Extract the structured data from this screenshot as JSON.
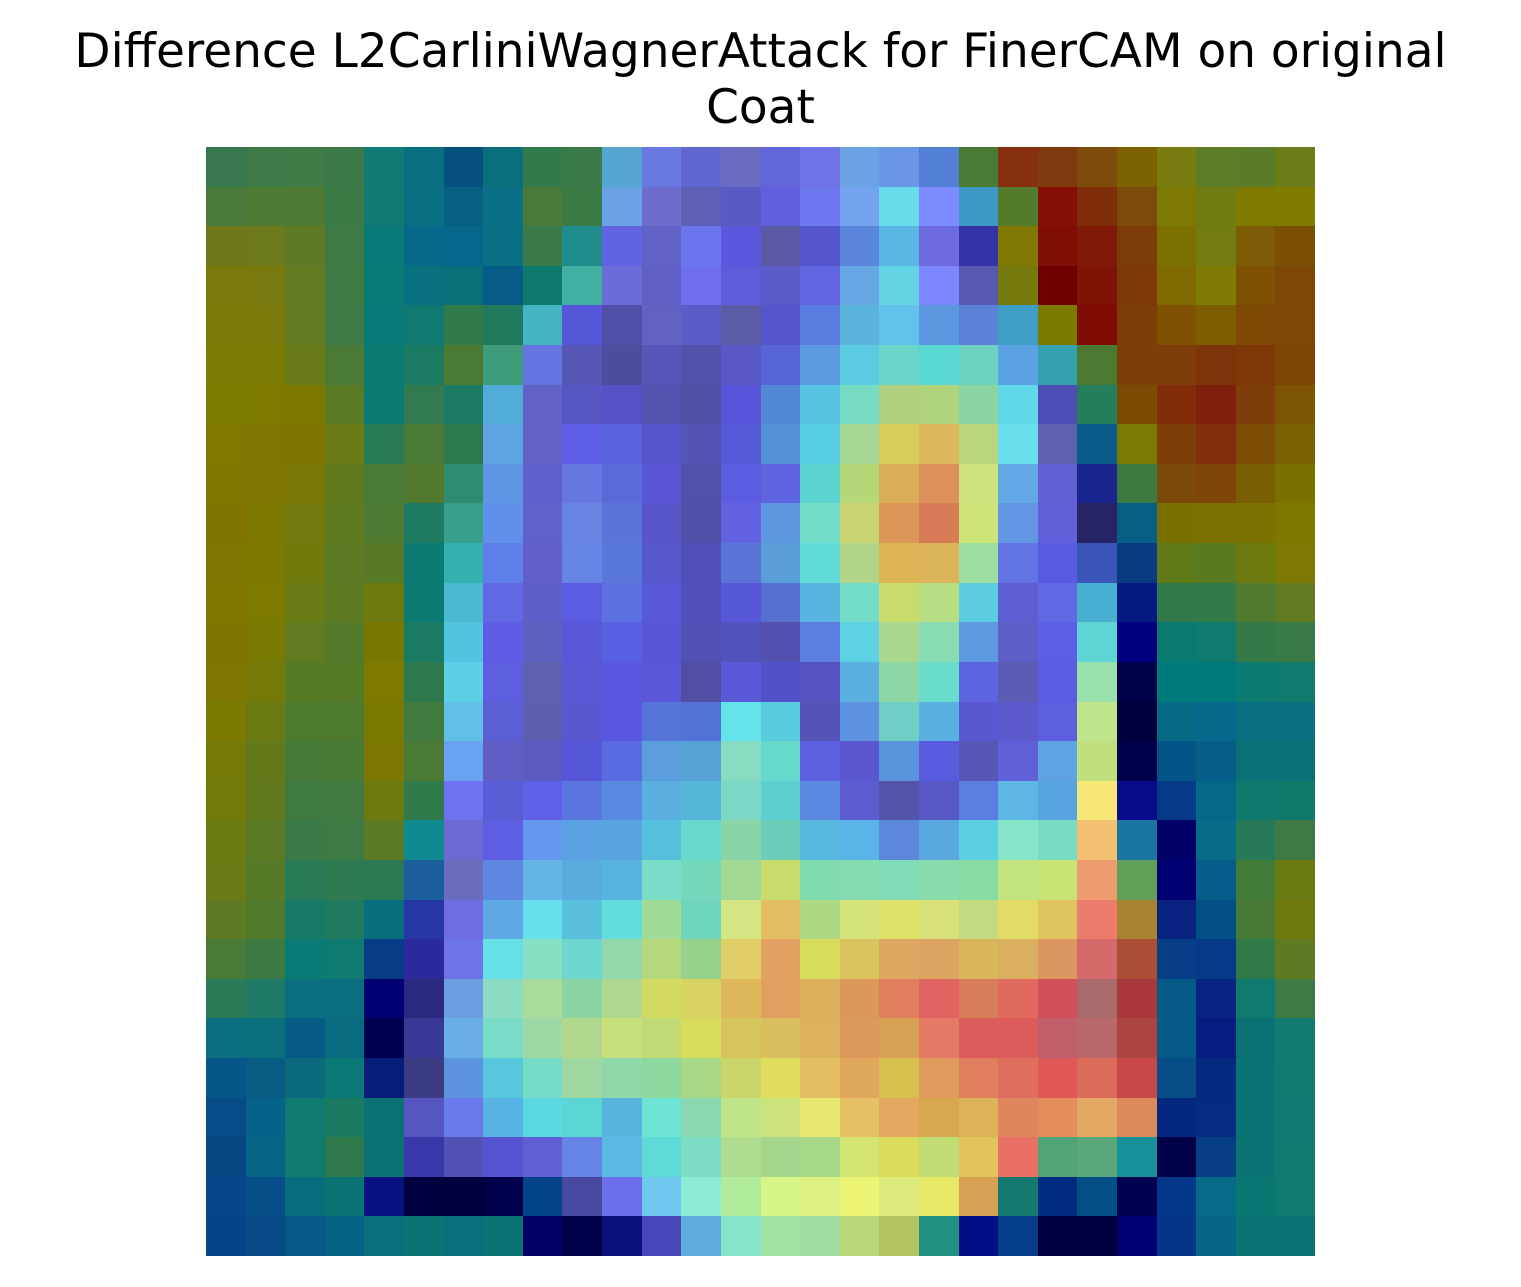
{
  "figure": {
    "title_line1": "Difference L2CarliniWagnerAttack for FinerCAM on original",
    "title_line2": "Coat"
  },
  "image": {
    "description_name": "difference-heatmap-overlay",
    "grid_size": 28,
    "rows": [
      [
        "#38784e",
        "#3e7a48",
        "#407a44",
        "#3a7a48",
        "#107a74",
        "#086e80",
        "#06507e",
        "#0a6e7c",
        "#307a4c",
        "#3a7a48",
        "#56a4d2",
        "#6a78e2",
        "#6266d0",
        "#6a6cc2",
        "#6266d8",
        "#6e74e8",
        "#6aa2e4",
        "#6a96e6",
        "#5280d4",
        "#4a7a34",
        "#863010",
        "#7e3a0c",
        "#7e4c0a",
        "#7e6200",
        "#767c10",
        "#5c7c28",
        "#5a7c28",
        "#6c7c18"
      ],
      [
        "#4a7a3a",
        "#4e7c34",
        "#4e7a34",
        "#3a7a44",
        "#127a74",
        "#0a6e82",
        "#066082",
        "#0a7088",
        "#4a7a3a",
        "#3a7a44",
        "#68a2e4",
        "#6e6cca",
        "#5e60b6",
        "#5a5ac4",
        "#6060dc",
        "#6e78ee",
        "#74a4f0",
        "#68dcea",
        "#7c8cff",
        "#3e98c4",
        "#527c2c",
        "#861008",
        "#802e0a",
        "#7c4a0a",
        "#7c7a04",
        "#6e7c12",
        "#807a00",
        "#807c00"
      ],
      [
        "#6e7818",
        "#6c7a1c",
        "#5e7a26",
        "#3e7a44",
        "#0a7a78",
        "#08688a",
        "#06668c",
        "#0a7086",
        "#3a7a48",
        "#1e8c8a",
        "#6064e0",
        "#6262c6",
        "#6c76ec",
        "#5c58de",
        "#5c5aa4",
        "#5656cc",
        "#5a86dc",
        "#5cb6e4",
        "#6e6ae0",
        "#3434a8",
        "#807a04",
        "#800e06",
        "#801a08",
        "#7c3c0a",
        "#7c7000",
        "#727c12",
        "#7c5a06",
        "#7c5004"
      ],
      [
        "#7a7a0c",
        "#787a10",
        "#647a20",
        "#3e7a44",
        "#0a7a76",
        "#08707e",
        "#087078",
        "#065c86",
        "#0e7a6c",
        "#42b0a0",
        "#6a6cd8",
        "#6060c4",
        "#6e6eee",
        "#5e5cd8",
        "#5c5cc8",
        "#6266e0",
        "#66a6e4",
        "#62d4e4",
        "#7c86fe",
        "#5858b0",
        "#747a0c",
        "#6e0000",
        "#7e1406",
        "#7e380a",
        "#7e6a00",
        "#7e7c04",
        "#7e5202",
        "#7c4804"
      ],
      [
        "#7a7a0a",
        "#7a7a0a",
        "#647a20",
        "#3e7a46",
        "#0a7a78",
        "#107a72",
        "#327a4a",
        "#227a5e",
        "#42b4c2",
        "#5656d8",
        "#5050a8",
        "#6262c2",
        "#5c5cc8",
        "#5c5ca6",
        "#5656cc",
        "#5a7cde",
        "#5ab4dc",
        "#62c2ea",
        "#5c98e0",
        "#5c82d8",
        "#3e9ec4",
        "#7a7a00",
        "#800a04",
        "#7e3e0a",
        "#7e5202",
        "#7e5c02",
        "#7e4806",
        "#7e4804"
      ],
      [
        "#7c7c06",
        "#7c7c04",
        "#687a1a",
        "#4a7a36",
        "#0a7a72",
        "#1a7a62",
        "#4a7a34",
        "#3e9c7a",
        "#6674e2",
        "#5656b4",
        "#4e4c9e",
        "#5656b8",
        "#5252aa",
        "#5a58c4",
        "#5664d8",
        "#5c9ae0",
        "#5ccae0",
        "#6ad6c8",
        "#5ad8d4",
        "#6ed2c0",
        "#5aa2e4",
        "#34a0b0",
        "#4c7a30",
        "#7e3e0a",
        "#7e3e0a",
        "#7e3408",
        "#7e3808",
        "#7e4404"
      ],
      [
        "#7c7c00",
        "#7c7a00",
        "#7c7800",
        "#5a7a26",
        "#0a7a72",
        "#327a50",
        "#1a7a64",
        "#52acd8",
        "#6262c6",
        "#5656c2",
        "#5652c6",
        "#5454b0",
        "#5250a4",
        "#5654d8",
        "#5288d4",
        "#58c4e2",
        "#78dcc4",
        "#b0d080",
        "#b0d47e",
        "#8ad6a2",
        "#60d8e8",
        "#4c4eb4",
        "#247e5c",
        "#7c4a02",
        "#822c0a",
        "#7e200c",
        "#7e3e0a",
        "#7c5404"
      ],
      [
        "#807800",
        "#7e7600",
        "#7e7400",
        "#6a7a14",
        "#2a7a56",
        "#4a7a36",
        "#2c7a4e",
        "#5ea4e2",
        "#6262c6",
        "#5e5ee6",
        "#5a62e0",
        "#5656cc",
        "#5454b2",
        "#545ad8",
        "#5690d6",
        "#58cee2",
        "#a6d896",
        "#d8cc5a",
        "#dcb85a",
        "#b8d67c",
        "#6adeec",
        "#6060b0",
        "#0a5a8a",
        "#7a7a04",
        "#7e3e0a",
        "#822e0c",
        "#7c4c04",
        "#7c6004"
      ],
      [
        "#807600",
        "#7e7600",
        "#7a7806",
        "#627a1e",
        "#4a7a38",
        "#527a2e",
        "#308c70",
        "#5e96e4",
        "#6060cc",
        "#6678e0",
        "#5c6ad8",
        "#5a56d6",
        "#5250a8",
        "#5c5ce0",
        "#5e64e0",
        "#5cd4d2",
        "#b6d67a",
        "#daae58",
        "#dc905a",
        "#cce27a",
        "#62a8e4",
        "#6060d0",
        "#1a2690",
        "#3c7a40",
        "#7c4a08",
        "#7e4408",
        "#7a5e04",
        "#7a7000"
      ],
      [
        "#807400",
        "#7c7800",
        "#727a0e",
        "#607a20",
        "#4e7a32",
        "#1e7a60",
        "#38a08a",
        "#6090ea",
        "#6062cc",
        "#6684e0",
        "#5a74d8",
        "#5656c6",
        "#5050a8",
        "#6262e2",
        "#5e96e0",
        "#72dcc8",
        "#c8d470",
        "#dc9658",
        "#d87c58",
        "#cce478",
        "#6296e4",
        "#6060d8",
        "#262464",
        "#066086",
        "#7a7000",
        "#7a7004",
        "#7c7200",
        "#7c7800"
      ],
      [
        "#7e7600",
        "#7c7800",
        "#707a0a",
        "#5e7a22",
        "#587a28",
        "#0a7a72",
        "#34b0b0",
        "#5e80e8",
        "#6060c8",
        "#6684e4",
        "#5a78dc",
        "#5658cc",
        "#5050b8",
        "#5a74d8",
        "#5a9ed8",
        "#62dcd8",
        "#b0d488",
        "#dcb456",
        "#dcb45a",
        "#9cdea0",
        "#6274e4",
        "#5a5ae0",
        "#3a54b8",
        "#0a3a80",
        "#607a18",
        "#5a7a20",
        "#6c7a10",
        "#7c7a04"
      ],
      [
        "#807600",
        "#7c7a00",
        "#6a7a14",
        "#5e7a22",
        "#6c7a10",
        "#0a7a72",
        "#4cb8d0",
        "#6068e4",
        "#5e5ec8",
        "#5c5ce2",
        "#5c70e0",
        "#5858d8",
        "#5050b8",
        "#5658d8",
        "#5670d0",
        "#5ab4e0",
        "#72dcc8",
        "#c8dc6c",
        "#b8de84",
        "#5ccce0",
        "#5e5ed0",
        "#6068e4",
        "#48aed2",
        "#061a82",
        "#327a4a",
        "#327a48",
        "#527a2e",
        "#627a20"
      ],
      [
        "#807400",
        "#787a02",
        "#627a20",
        "#547a2a",
        "#787800",
        "#1a7a62",
        "#52c4e0",
        "#5e5ce4",
        "#5e60c0",
        "#5858d8",
        "#5660e0",
        "#5656d6",
        "#5252b4",
        "#5252bc",
        "#5450b0",
        "#5c7ee0",
        "#5cd2e2",
        "#aad88e",
        "#88dcb0",
        "#5e98e0",
        "#5e5ec8",
        "#5e5ee4",
        "#5ed4d4",
        "#00007e",
        "#0a7a70",
        "#0e7a70",
        "#347a48",
        "#3a7a46"
      ],
      [
        "#7e7600",
        "#747a08",
        "#567a26",
        "#547a28",
        "#7c7a00",
        "#2e7a4e",
        "#5cd0e4",
        "#5e5ee0",
        "#5e60b0",
        "#5a5ad4",
        "#5a58e0",
        "#5a58d6",
        "#524ea4",
        "#5a5ad8",
        "#5252c8",
        "#5652c0",
        "#5ab0e0",
        "#8ed6a4",
        "#6adccc",
        "#5c64e0",
        "#5c5cb4",
        "#5c5ce0",
        "#9ae2ac",
        "#000048",
        "#007a7a",
        "#007a7a",
        "#0c7a70",
        "#107a6c"
      ],
      [
        "#7a7a00",
        "#6a7a12",
        "#4e7a30",
        "#4e7a30",
        "#7a7a00",
        "#427a40",
        "#62c0e6",
        "#5c5ed4",
        "#5e5eb0",
        "#5a58d0",
        "#5a58e0",
        "#5474d8",
        "#5472d6",
        "#64e4ea",
        "#58ccdc",
        "#5454b8",
        "#5c92e0",
        "#6ed0c4",
        "#5ab0e0",
        "#5a58d0",
        "#5c5acc",
        "#5c60e0",
        "#c0e48a",
        "#00003c",
        "#066a84",
        "#06688a",
        "#087080",
        "#087080"
      ],
      [
        "#747a08",
        "#647a1a",
        "#467a38",
        "#487a36",
        "#7a7800",
        "#4a7a36",
        "#6aa2f2",
        "#5e5ec4",
        "#5c5cc0",
        "#5656d8",
        "#5a6ae0",
        "#5a9ede",
        "#56a2d6",
        "#88dcc2",
        "#66d8cc",
        "#5c60e0",
        "#5a56d0",
        "#5a94dc",
        "#5a5ce0",
        "#5656b4",
        "#6060d8",
        "#5ea4e2",
        "#c0e080",
        "#00004a",
        "#04548a",
        "#065e88",
        "#0a7078",
        "#0a7078"
      ],
      [
        "#727a0c",
        "#627a1c",
        "#3e7a42",
        "#407a40",
        "#6c7a10",
        "#307a4c",
        "#6c72f0",
        "#5a5ed4",
        "#6060e8",
        "#5c76e0",
        "#5a8ae0",
        "#5aaee0",
        "#56b6d8",
        "#7cd8c4",
        "#5cd0d0",
        "#5a8ae0",
        "#5c5cd0",
        "#5454a8",
        "#5858c4",
        "#5c7ee0",
        "#5eb6e4",
        "#58a4e0",
        "#f6e876",
        "#0a0a8c",
        "#063a88",
        "#066888",
        "#0e7a6e",
        "#107a6a"
      ],
      [
        "#6c7a12",
        "#5a7a24",
        "#3a7a46",
        "#3e7a44",
        "#5a7a24",
        "#0e8a90",
        "#6a6ad0",
        "#5e5ee2",
        "#6498ee",
        "#5aa2e2",
        "#58a4de",
        "#56c0dc",
        "#6ad8cc",
        "#8ad4a8",
        "#6cceb8",
        "#58b8e0",
        "#5ab4e8",
        "#5c88dc",
        "#5aa8e0",
        "#5ad0e0",
        "#86e4c8",
        "#78dcc4",
        "#f2c070",
        "#1a76a0",
        "#000068",
        "#086a86",
        "#267a58",
        "#3e7a44"
      ],
      [
        "#6a7a14",
        "#567a28",
        "#2a7a58",
        "#307a52",
        "#2c7a52",
        "#1a5e9e",
        "#6a6cbc",
        "#5e88e0",
        "#64b4e6",
        "#5aacde",
        "#58b4de",
        "#7addc8",
        "#74d8bc",
        "#a0d894",
        "#c8dc6c",
        "#80dcb0",
        "#84dcb0",
        "#80dcb6",
        "#88dcac",
        "#88dca2",
        "#c2e480",
        "#c8e474",
        "#ee9c70",
        "#62a05a",
        "#000070",
        "#065c88",
        "#427a38",
        "#6a7a12"
      ],
      [
        "#5e7a22",
        "#527a2c",
        "#167a66",
        "#207a60",
        "#086e7c",
        "#2636a2",
        "#6e6ee2",
        "#5ea8e4",
        "#66e0ea",
        "#5ac0dc",
        "#62dcdc",
        "#a0dc98",
        "#6ed4bc",
        "#d4e684",
        "#e4be62",
        "#aed882",
        "#d4e47a",
        "#dee268",
        "#d8e07a",
        "#c2da80",
        "#e2dc66",
        "#e0c460",
        "#ec7c6c",
        "#a88430",
        "#0a2280",
        "#044e86",
        "#467a36",
        "#6e7a0e"
      ],
      [
        "#4a7a38",
        "#3c7a44",
        "#0a7a74",
        "#0e7a70",
        "#083c86",
        "#2a2a9c",
        "#6e74e8",
        "#66e0e4",
        "#86e0c4",
        "#6ed8d0",
        "#92d8aa",
        "#b6d87c",
        "#96d28c",
        "#e2ce68",
        "#e2a264",
        "#d8dc5c",
        "#dac460",
        "#dca862",
        "#dca460",
        "#dab65a",
        "#dab060",
        "#dc9660",
        "#d46a6a",
        "#aa4e34",
        "#063e88",
        "#063a86",
        "#307a4a",
        "#5e7a22"
      ],
      [
        "#2a7a58",
        "#1e7a64",
        "#0a6e80",
        "#0a6e80",
        "#000070",
        "#2a2a80",
        "#6c9ee2",
        "#8cdcc4",
        "#a8dc9c",
        "#8cd4a4",
        "#b0d890",
        "#d2da62",
        "#d8d464",
        "#e0b85c",
        "#e2a060",
        "#dcb05c",
        "#dc9858",
        "#e07e5e",
        "#e06462",
        "#d87e58",
        "#e06a5e",
        "#d2505a",
        "#a86a6a",
        "#a8383c",
        "#065a88",
        "#062480",
        "#0e7a70",
        "#3e7a44"
      ],
      [
        "#0a6e80",
        "#0a6e7c",
        "#065a86",
        "#0a6a80",
        "#000050",
        "#383896",
        "#6aaee8",
        "#78dcc6",
        "#9ed8a4",
        "#b0d88c",
        "#c8e07c",
        "#c2da76",
        "#d8dc5c",
        "#d6c45c",
        "#d8be5c",
        "#dcb25c",
        "#de9a5c",
        "#d8a052",
        "#e47a64",
        "#dc5c5c",
        "#dc5c5c",
        "#c0606a",
        "#b86868",
        "#ac4440",
        "#065a88",
        "#061c80",
        "#0a7072",
        "#127a70"
      ],
      [
        "#06568a",
        "#085c84",
        "#0a6a7c",
        "#0a7874",
        "#061e78",
        "#3c3c84",
        "#5c94e0",
        "#58c6dc",
        "#76dcc6",
        "#9ed8a0",
        "#90d8aa",
        "#8ed8a0",
        "#a8d884",
        "#cad66c",
        "#e0dc5c",
        "#e4be62",
        "#e0a85c",
        "#d8c04e",
        "#e09a5c",
        "#e07e60",
        "#e06e5c",
        "#e05858",
        "#dc6c5a",
        "#c84848",
        "#064c86",
        "#042a80",
        "#0a7474",
        "#127a6c"
      ],
      [
        "#064c88",
        "#066288",
        "#0e7a70",
        "#1a7a60",
        "#0a7274",
        "#5656c0",
        "#6a7aea",
        "#58b2e4",
        "#5cd8e0",
        "#5cd6d4",
        "#58b6dc",
        "#6ee4d4",
        "#8ad8b0",
        "#c0e488",
        "#cce27c",
        "#e6e870",
        "#e6c064",
        "#e2a862",
        "#d8a850",
        "#dcb25a",
        "#e0865c",
        "#e48e5c",
        "#e2a864",
        "#dc8a5c",
        "#042880",
        "#062c82",
        "#0a7474",
        "#0e7a72"
      ],
      [
        "#064884",
        "#066484",
        "#0e7a70",
        "#2e7a4c",
        "#0a7274",
        "#3838a8",
        "#5252b4",
        "#5454d0",
        "#6060d4",
        "#6684e6",
        "#5cb8e4",
        "#60dad8",
        "#7cdcc4",
        "#b0dc90",
        "#a6d68c",
        "#a6d888",
        "#d4e470",
        "#dcdc5c",
        "#c2dc74",
        "#e2c45c",
        "#e87064",
        "#50a476",
        "#5aa87a",
        "#18909a",
        "#000048",
        "#063e86",
        "#0a7474",
        "#107a70"
      ],
      [
        "#06468a",
        "#064e88",
        "#086c7c",
        "#0a7474",
        "#08127e",
        "#000040",
        "#00003c",
        "#00004a",
        "#04428a",
        "#4848a0",
        "#6a70ea",
        "#70c8f0",
        "#8cecd4",
        "#b0ec9c",
        "#d6f488",
        "#dcf084",
        "#ecf474",
        "#dcea7c",
        "#e6e866",
        "#d8a052",
        "#147a70",
        "#002c80",
        "#044e86",
        "#000050",
        "#04388a",
        "#066a88",
        "#0a7672",
        "#107a70"
      ],
      [
        "#06448a",
        "#064a88",
        "#065886",
        "#066284",
        "#0a6e7c",
        "#0a7474",
        "#0a6e7c",
        "#0a7474",
        "#000068",
        "#00004a",
        "#0a107c",
        "#4848b8",
        "#60ace0",
        "#88e4c8",
        "#a0e4a4",
        "#a0dca0",
        "#b8d87a",
        "#b4c460",
        "#229080",
        "#000e84",
        "#043e88",
        "#000040",
        "#000040",
        "#000070",
        "#063488",
        "#066488",
        "#0a7474",
        "#0a7474"
      ]
    ]
  }
}
